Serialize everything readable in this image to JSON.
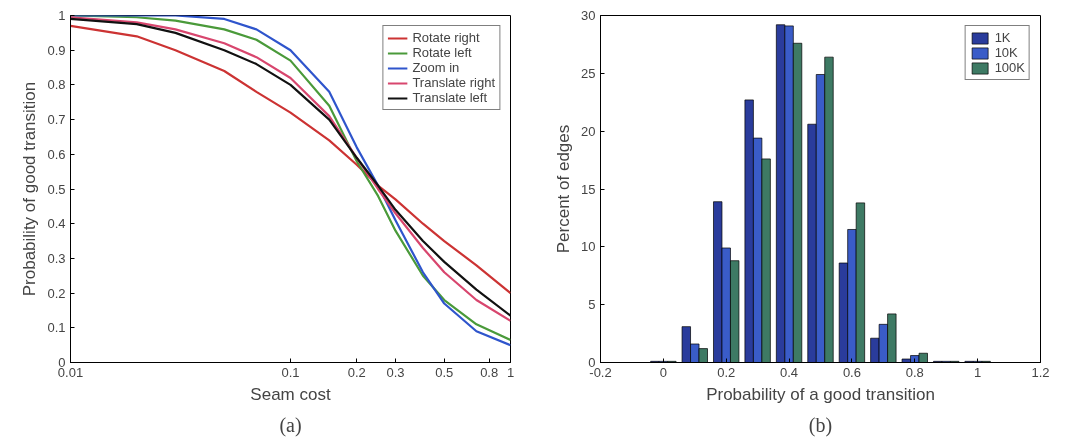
{
  "chart_data": [
    {
      "type": "line",
      "xlabel": "Seam cost",
      "ylabel": "Probability of good transition",
      "log": "x",
      "x": [
        0.01,
        0.02,
        0.03,
        0.05,
        0.07,
        0.1,
        0.15,
        0.2,
        0.25,
        0.3,
        0.4,
        0.5,
        0.7,
        1
      ],
      "xlim": [
        0.01,
        1
      ],
      "ylim": [
        0,
        1
      ],
      "xticks": [
        0.01,
        0.1,
        0.2,
        0.3,
        0.5,
        0.8,
        1
      ],
      "yticks": [
        0,
        0.1,
        0.2,
        0.3,
        0.4,
        0.5,
        0.6,
        0.7,
        0.8,
        0.9,
        1
      ],
      "series": [
        {
          "name": "Rotate right",
          "color": "#cc3333",
          "values": [
            0.97,
            0.94,
            0.9,
            0.84,
            0.78,
            0.72,
            0.64,
            0.57,
            0.51,
            0.47,
            0.4,
            0.35,
            0.28,
            0.2
          ]
        },
        {
          "name": "Rotate left",
          "color": "#4a9a3a",
          "values": [
            1.0,
            0.995,
            0.985,
            0.96,
            0.93,
            0.87,
            0.74,
            0.58,
            0.48,
            0.38,
            0.25,
            0.18,
            0.11,
            0.065
          ]
        },
        {
          "name": "Zoom in",
          "color": "#2f55cc",
          "values": [
            1.0,
            1.0,
            1.0,
            0.99,
            0.96,
            0.9,
            0.78,
            0.62,
            0.51,
            0.41,
            0.26,
            0.17,
            0.09,
            0.05
          ]
        },
        {
          "name": "Translate right",
          "color": "#d8466e",
          "values": [
            0.995,
            0.98,
            0.96,
            0.92,
            0.88,
            0.82,
            0.71,
            0.59,
            0.5,
            0.43,
            0.33,
            0.26,
            0.18,
            0.12
          ]
        },
        {
          "name": "Translate left",
          "color": "#111111",
          "values": [
            0.99,
            0.975,
            0.95,
            0.9,
            0.86,
            0.8,
            0.7,
            0.59,
            0.51,
            0.44,
            0.35,
            0.29,
            0.21,
            0.135
          ]
        }
      ],
      "legend": "top right",
      "grid": false,
      "annotations": [
        "(a)"
      ]
    },
    {
      "type": "bar",
      "xlabel": "Probability of a good transition",
      "ylabel": "Percent of edges",
      "x": [
        0,
        0.1,
        0.2,
        0.3,
        0.4,
        0.5,
        0.6,
        0.7,
        0.8,
        0.9,
        1.0
      ],
      "xlim": [
        -0.2,
        1.2
      ],
      "ylim": [
        0,
        30
      ],
      "xticks": [
        -0.2,
        0,
        0.2,
        0.4,
        0.6,
        0.8,
        1,
        1.2
      ],
      "yticks": [
        0,
        5,
        10,
        15,
        20,
        25,
        30
      ],
      "series": [
        {
          "name": "1K",
          "color": "#2a3c9c",
          "values": [
            0.1,
            3.1,
            13.9,
            22.7,
            29.2,
            20.6,
            8.6,
            2.1,
            0.3,
            0.1,
            0.1
          ]
        },
        {
          "name": "10K",
          "color": "#3a5cc8",
          "values": [
            0.1,
            1.6,
            9.9,
            19.4,
            29.1,
            24.9,
            11.5,
            3.3,
            0.6,
            0.1,
            0.1
          ]
        },
        {
          "name": "100K",
          "color": "#3e7a64",
          "values": [
            0.1,
            1.2,
            8.8,
            17.6,
            27.6,
            26.4,
            13.8,
            4.2,
            0.8,
            0.1,
            0.1
          ]
        }
      ],
      "legend": "top right",
      "grid": false,
      "annotations": [
        "(b)"
      ]
    }
  ]
}
